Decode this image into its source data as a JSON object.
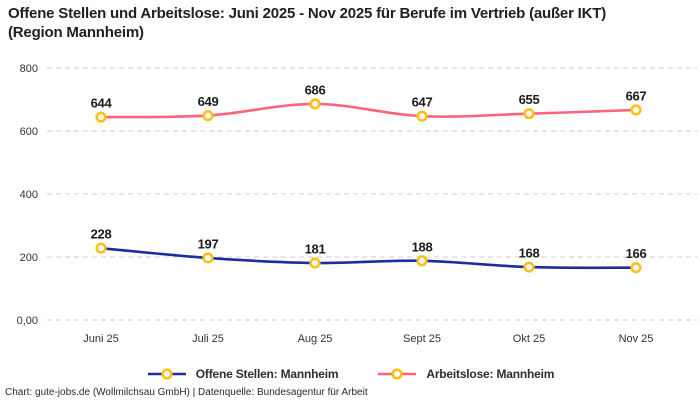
{
  "title": "Offene Stellen und Arbeitslose: Juni 2025 - Nov 2025 für Berufe im Vertrieb (außer IKT) (Region Mannheim)",
  "footer": "Chart: gute-jobs.de (Wollmilchsau GmbH) | Datenquelle: Bundesagentur für Arbeit",
  "colors": {
    "background": "#ffffff",
    "grid": "#cdcdcd",
    "title_text": "#212121",
    "axis_text": "#333333",
    "value_label_text": "#1b1b1b",
    "legend_text": "#2e2e2e",
    "footer_text": "#2b2b2b",
    "series_open_positions": "#1c2e9e",
    "series_unemployed": "#fb637f",
    "marker_ring": "#fdc018",
    "marker_fill": "#ffffff"
  },
  "chart_data": {
    "type": "line",
    "title": "Offene Stellen und Arbeitslose: Juni 2025 - Nov 2025 für Berufe im Vertrieb (außer IKT) (Region Mannheim)",
    "categories": [
      "Juni 25",
      "Juli 25",
      "Aug 25",
      "Sept 25",
      "Okt 25",
      "Nov 25"
    ],
    "series": [
      {
        "name": "Offene Stellen: Mannheim",
        "values": [
          228,
          197,
          181,
          188,
          168,
          166
        ],
        "color": "#1c2e9e"
      },
      {
        "name": "Arbeitslose: Mannheim",
        "values": [
          644,
          649,
          686,
          647,
          655,
          667
        ],
        "color": "#fb637f"
      }
    ],
    "ylim": [
      0,
      800
    ],
    "yticks": [
      {
        "value": 0,
        "label": "0,00"
      },
      {
        "value": 200,
        "label": "200"
      },
      {
        "value": 400,
        "label": "400"
      },
      {
        "value": 600,
        "label": "600"
      },
      {
        "value": 800,
        "label": "800"
      }
    ],
    "xlabel": "",
    "ylabel": "",
    "grid": "horizontal-dashed",
    "legend_position": "bottom",
    "line_style": "smooth",
    "value_labels": "above-points",
    "marker": {
      "shape": "circle",
      "stroke": "#fdc018",
      "fill": "#ffffff"
    }
  }
}
